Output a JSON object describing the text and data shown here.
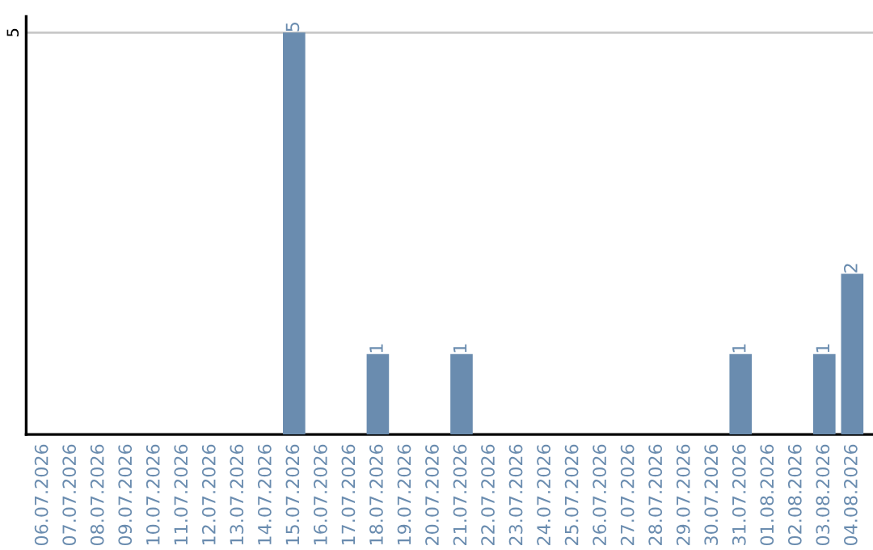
{
  "chart_data": {
    "type": "bar",
    "categories": [
      "06.07.2026",
      "07.07.2026",
      "08.07.2026",
      "09.07.2026",
      "10.07.2026",
      "11.07.2026",
      "12.07.2026",
      "13.07.2026",
      "14.07.2026",
      "15.07.2026",
      "16.07.2026",
      "17.07.2026",
      "18.07.2026",
      "19.07.2026",
      "20.07.2026",
      "21.07.2026",
      "22.07.2026",
      "23.07.2026",
      "24.07.2026",
      "25.07.2026",
      "26.07.2026",
      "27.07.2026",
      "28.07.2026",
      "29.07.2026",
      "30.07.2026",
      "31.07.2026",
      "01.08.2026",
      "02.08.2026",
      "03.08.2026",
      "04.08.2026"
    ],
    "values": [
      0,
      0,
      0,
      0,
      0,
      0,
      0,
      0,
      0,
      5,
      0,
      0,
      1,
      0,
      0,
      1,
      0,
      0,
      0,
      0,
      0,
      0,
      0,
      0,
      0,
      1,
      0,
      0,
      1,
      2
    ],
    "value_labels": [
      null,
      null,
      null,
      null,
      null,
      null,
      null,
      null,
      null,
      "5",
      null,
      null,
      "1",
      null,
      null,
      "1",
      null,
      null,
      null,
      null,
      null,
      null,
      null,
      null,
      null,
      "1",
      null,
      null,
      "1",
      "2"
    ],
    "color": "#6a8caf",
    "ylim": [
      0,
      5.2
    ],
    "yticks": [
      5
    ],
    "grid": "y"
  }
}
